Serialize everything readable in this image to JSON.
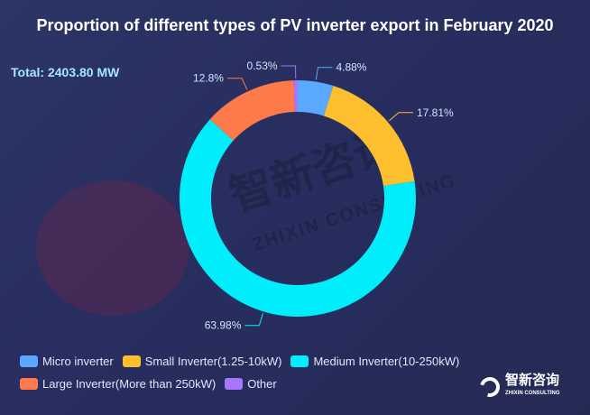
{
  "title": "Proportion of different types of PV inverter export in February 2020",
  "total": "Total: 2403.80 MW",
  "watermark": {
    "cn": "智新咨询",
    "en": "ZHIXIN CONSULTING"
  },
  "logo": {
    "cn": "智新咨询",
    "en": "ZHIXIN CONSULTING"
  },
  "chart_data": {
    "type": "pie",
    "variant": "donut",
    "title": "Proportion of different types of PV inverter export in February 2020",
    "unit": "%",
    "legend_position": "bottom",
    "slices": [
      {
        "name": "Micro inverter",
        "value": 4.88,
        "label": "4.88%",
        "color": "#5aa8ff"
      },
      {
        "name": "Small Inverter(1.25-10kW)",
        "value": 17.81,
        "label": "17.81%",
        "color": "#fdbf2d"
      },
      {
        "name": "Medium Inverter(10-250kW)",
        "value": 63.98,
        "label": "63.98%",
        "color": "#00eefc"
      },
      {
        "name": "Large Inverter(More than 250kW)",
        "value": 12.8,
        "label": "12.8%",
        "color": "#ff7a4a"
      },
      {
        "name": "Other",
        "value": 0.53,
        "label": "0.53%",
        "color": "#a875ff"
      }
    ]
  }
}
